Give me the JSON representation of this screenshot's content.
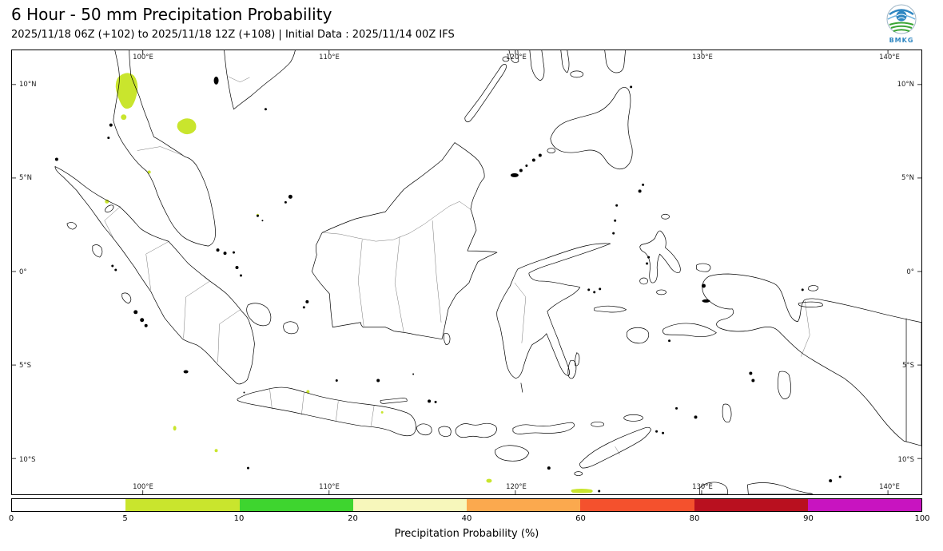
{
  "header": {
    "title": "6 Hour - 50 mm Precipitation Probability",
    "subtitle": "2025/11/18 06Z (+102) to 2025/11/18 12Z (+108) | Initial Data : 2025/11/14 00Z IFS"
  },
  "logo": {
    "text": "BMKG"
  },
  "map": {
    "lon_ticks": [
      "100°E",
      "110°E",
      "120°E",
      "130°E",
      "140°E"
    ],
    "lat_ticks": [
      "10°N",
      "5°N",
      "0°",
      "5°S",
      "10°S"
    ],
    "patch_color": "#c9e52d"
  },
  "colorbar": {
    "title": "Precipitation Probability (%)",
    "ticks": [
      "0",
      "5",
      "10",
      "20",
      "40",
      "60",
      "80",
      "90",
      "100"
    ],
    "segment_colors": [
      "#ffffff",
      "#c9e52d",
      "#3ed52f",
      "#f7f7bb",
      "#fba94e",
      "#f4512d",
      "#b9101f",
      "#c814c0"
    ]
  }
}
